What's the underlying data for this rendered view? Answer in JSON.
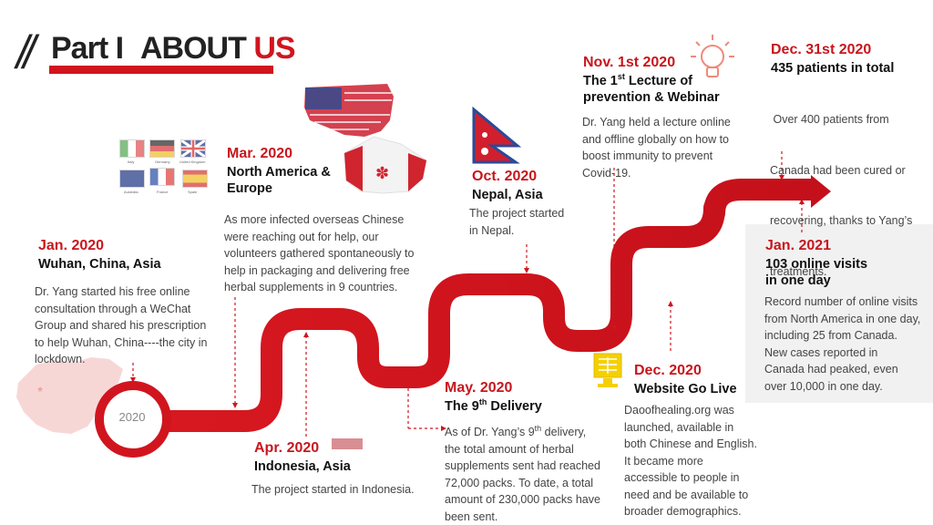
{
  "header": {
    "slashes": "//",
    "part": "Part I",
    "about": "ABOUT",
    "us": "US"
  },
  "circle_label": "2020",
  "colors": {
    "accent": "#d0151f",
    "panel": "#f1f1f1"
  },
  "events": {
    "jan2020": {
      "date": "Jan. 2020",
      "place": "Wuhan, China, Asia",
      "lines": [
        "Dr. Yang started his free online",
        "consultation through a WeChat",
        "Group and shared his prescription",
        "to help Wuhan, China----the city in",
        "lockdown."
      ]
    },
    "mar2020": {
      "date": "Mar. 2020",
      "place_lines": [
        "North America &",
        "Europe"
      ],
      "lines": [
        "As more infected overseas Chinese",
        "were reaching out for help, our",
        "volunteers gathered spontaneously to",
        "help in packaging and delivering free",
        "herbal supplements in 9 countries."
      ]
    },
    "apr2020": {
      "date": "Apr. 2020",
      "place": "Indonesia, Asia",
      "lines": [
        "The project started in Indonesia."
      ]
    },
    "may2020": {
      "date": "May. 2020",
      "place_pre": "The 9",
      "place_sup": "th",
      "place_post": " Delivery",
      "line1_pre": "As of Dr. Yang’s 9",
      "line1_sup": "th",
      "line1_post": " delivery,",
      "lines": [
        "the total amount of herbal",
        "supplements sent had reached",
        "72,000 packs. To date, a total",
        "amount of 230,000 packs have",
        "been sent."
      ]
    },
    "oct2020": {
      "date": "Oct. 2020",
      "place": "Nepal, Asia",
      "lines": [
        "The project started",
        "in Nepal."
      ]
    },
    "nov2020": {
      "date": "Nov. 1st 2020",
      "place_pre": "The 1",
      "place_sup": "st",
      "place_post": " Lecture of",
      "place_line2": "prevention & Webinar",
      "lines": [
        "Dr. Yang held a lecture online",
        "and offline globally on how to",
        "boost immunity to prevent",
        "Covid-19."
      ]
    },
    "dec2020": {
      "date": "Dec. 2020",
      "place": "Website Go Live",
      "lines": [
        "Daoofhealing.org was",
        "launched, available in",
        "both Chinese and English.",
        "It became more",
        "accessible to people in",
        "need and be available to",
        "broader demographics."
      ]
    },
    "dec31": {
      "date": "Dec. 31st  2020",
      "place": "435 patients in total",
      "lines": [
        " Over 400 patients from",
        "Canada had been cured or",
        "recovering, thanks to Yang’s",
        "treatments."
      ]
    },
    "jan2021": {
      "date": "Jan. 2021",
      "place_lines": [
        "103 online visits",
        "in one day"
      ],
      "lines": [
        "Record number of online visits",
        "from North America in one day,",
        "including 25 from Canada.",
        "New cases reported in",
        "Canada had peaked, even",
        "over 10,000 in one day."
      ]
    }
  },
  "flags": {
    "italy": "Italy",
    "germany": "Germany",
    "uk": "United Kingdom",
    "australia": "Australia",
    "france": "France",
    "spain": "Spain"
  }
}
